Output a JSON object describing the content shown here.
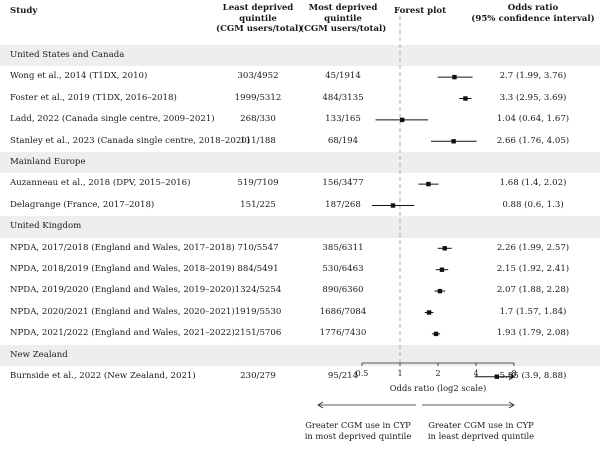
{
  "headers": {
    "study": "Study",
    "least": [
      "Least deprived",
      "quintile",
      "(CGM users/total)"
    ],
    "most": [
      "Most deprived",
      "quintile",
      "(CGM users/total)"
    ],
    "forest": "Forest plot",
    "or": [
      "Odds ratio",
      "(95% confidence interval)"
    ]
  },
  "rows": [
    {
      "type": "section",
      "label": "United States and Canada"
    },
    {
      "type": "study",
      "study": "Wong et al., 2014 (T1DX, 2010)",
      "least": "303/4952",
      "most": "45/1914",
      "or_text": "2.7 (1.99, 3.76)"
    },
    {
      "type": "study",
      "study": "Foster et al., 2019 (T1DX, 2016–2018)",
      "least": "1999/5312",
      "most": "484/3135",
      "or_text": "3.3 (2.95, 3.69)"
    },
    {
      "type": "study",
      "study": "Ladd, 2022 (Canada single centre, 2009–2021)",
      "least": "268/330",
      "most": "133/165",
      "or_text": "1.04 (0.64, 1.67)"
    },
    {
      "type": "study",
      "study": "Stanley et al., 2023 (Canada single centre, 2018–2020)",
      "least": "111/188",
      "most": "68/194",
      "or_text": "2.66 (1.76, 4.05)"
    },
    {
      "type": "section",
      "label": "Mainland Europe"
    },
    {
      "type": "study",
      "study": "Auzanneau et al., 2018 (DPV, 2015–2016)",
      "least": "519/7109",
      "most": "156/3477",
      "or_text": "1.68 (1.4, 2.02)"
    },
    {
      "type": "study",
      "study": "Delagrange (France, 2017–2018)",
      "least": "151/225",
      "most": "187/268",
      "or_text": "0.88 (0.6, 1.3)"
    },
    {
      "type": "section",
      "label": "United Kingdom"
    },
    {
      "type": "study",
      "study": "NPDA, 2017/2018 (England and Wales, 2017–2018)",
      "least": "710/5547",
      "most": "385/6311",
      "or_text": "2.26 (1.99, 2.57)"
    },
    {
      "type": "study",
      "study": "NPDA, 2018/2019 (England and Wales, 2018–2019)",
      "least": "884/5491",
      "most": "530/6463",
      "or_text": "2.15 (1.92, 2.41)"
    },
    {
      "type": "study",
      "study": "NPDA, 2019/2020 (England and Wales, 2019–2020)",
      "least": "1324/5254",
      "most": "890/6360",
      "or_text": "2.07 (1.88, 2.28)"
    },
    {
      "type": "study",
      "study": "NPDA, 2020/2021 (England and Wales, 2020–2021)",
      "least": "1919/5530",
      "most": "1686/7084",
      "or_text": "1.7 (1.57, 1.84)"
    },
    {
      "type": "study",
      "study": "NPDA, 2021/2022 (England and Wales, 2021–2022)",
      "least": "2151/5706",
      "most": "1776/7430",
      "or_text": "1.93 (1.79, 2.08)"
    },
    {
      "type": "section",
      "label": "New Zealand"
    },
    {
      "type": "study",
      "study": "Burnside et al., 2022 (New Zealand, 2021)",
      "least": "230/279",
      "most": "95/214",
      "or_text": "5.85 (3.9, 8.88)"
    }
  ],
  "chart_data": {
    "type": "forest",
    "xlabel": "Odds ratio (log2 scale)",
    "x_scale": "log2",
    "xlim": [
      0.5,
      8
    ],
    "xticks": [
      0.5,
      1,
      2,
      4,
      8
    ],
    "xtick_labels": [
      "0.5",
      "1",
      "2",
      "4",
      "8"
    ],
    "reference_line": 1,
    "points": [
      {
        "study": "Wong et al., 2014 (T1DX, 2010)",
        "or": 2.7,
        "lo": 1.99,
        "hi": 3.76
      },
      {
        "study": "Foster et al., 2019 (T1DX, 2016–2018)",
        "or": 3.3,
        "lo": 2.95,
        "hi": 3.69
      },
      {
        "study": "Ladd, 2022 (Canada single centre, 2009–2021)",
        "or": 1.04,
        "lo": 0.64,
        "hi": 1.67
      },
      {
        "study": "Stanley et al., 2023 (Canada single centre, 2018–2020)",
        "or": 2.66,
        "lo": 1.76,
        "hi": 4.05
      },
      {
        "study": "Auzanneau et al., 2018 (DPV, 2015–2016)",
        "or": 1.68,
        "lo": 1.4,
        "hi": 2.02
      },
      {
        "study": "Delagrange (France, 2017–2018)",
        "or": 0.88,
        "lo": 0.6,
        "hi": 1.3
      },
      {
        "study": "NPDA, 2017/2018 (England and Wales, 2017–2018)",
        "or": 2.26,
        "lo": 1.99,
        "hi": 2.57
      },
      {
        "study": "NPDA, 2018/2019 (England and Wales, 2018–2019)",
        "or": 2.15,
        "lo": 1.92,
        "hi": 2.41
      },
      {
        "study": "NPDA, 2019/2020 (England and Wales, 2019–2020)",
        "or": 2.07,
        "lo": 1.88,
        "hi": 2.28
      },
      {
        "study": "NPDA, 2020/2021 (England and Wales, 2020–2021)",
        "or": 1.7,
        "lo": 1.57,
        "hi": 1.84
      },
      {
        "study": "NPDA, 2021/2022 (England and Wales, 2021–2022)",
        "or": 1.93,
        "lo": 1.79,
        "hi": 2.08
      },
      {
        "study": "Burnside et al., 2022 (New Zealand, 2021)",
        "or": 5.85,
        "lo": 3.9,
        "hi": 8.88
      }
    ],
    "direction_labels": {
      "left": [
        "Greater CGM use in CYP",
        "in most deprived quintile"
      ],
      "right": [
        "Greater CGM use in CYP",
        "in least deprived quintile"
      ]
    },
    "colors": {
      "band": "#eeeeee",
      "mark": "#111111",
      "reference": "#999999"
    }
  }
}
